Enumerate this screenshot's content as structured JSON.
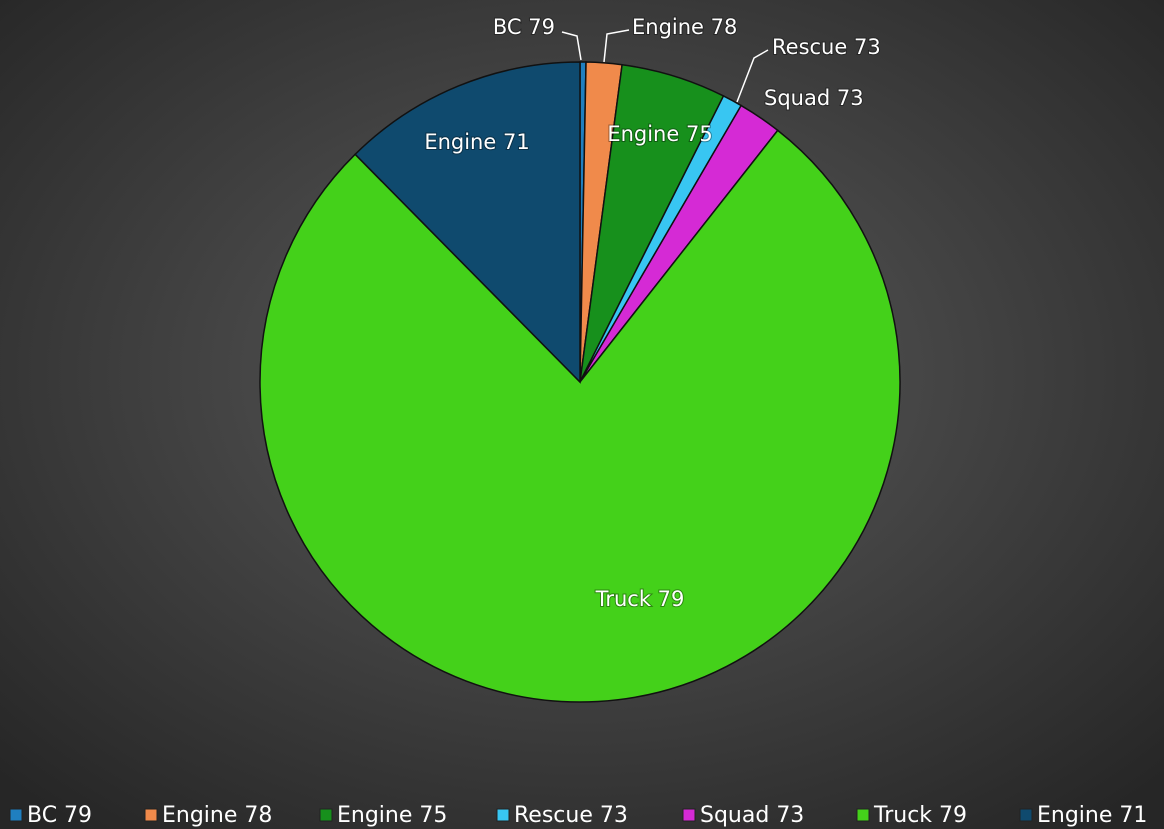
{
  "chart_data": {
    "type": "pie",
    "categories": [
      "BC 79",
      "Engine 78",
      "Engine 75",
      "Rescue 73",
      "Squad 73",
      "Truck 79",
      "Engine 71"
    ],
    "values": [
      0.3,
      1.8,
      5.3,
      1.0,
      2.2,
      77.0,
      12.4
    ],
    "colors": [
      "#1f7fc0",
      "#f08a4b",
      "#17901c",
      "#38c6f2",
      "#d52ad5",
      "#44d11a",
      "#0f4a6e"
    ],
    "legend": "bottom"
  }
}
